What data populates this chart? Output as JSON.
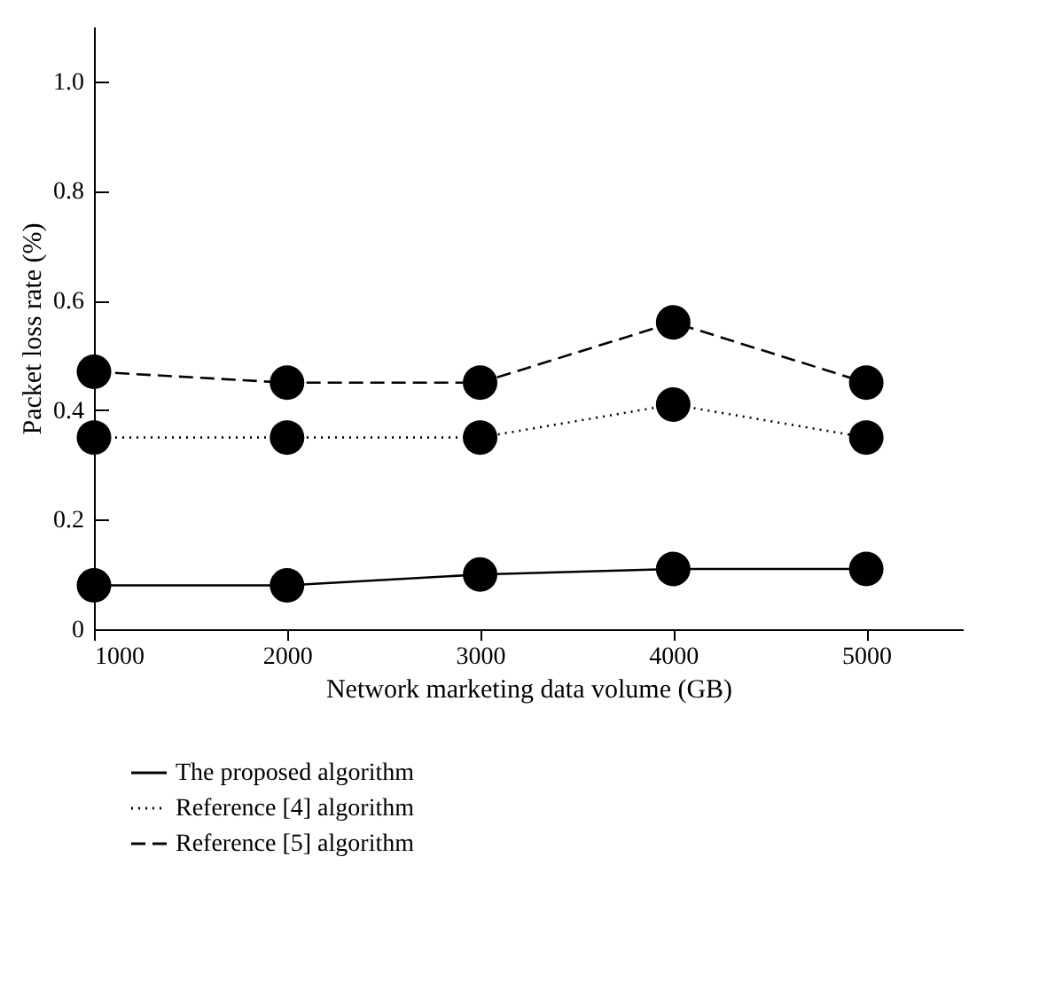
{
  "chart_data": {
    "type": "line",
    "xlabel": "Network marketing data volume (GB)",
    "ylabel": "Packet loss rate (%)",
    "x": [
      1000,
      2000,
      3000,
      4000,
      5000
    ],
    "series": [
      {
        "name": "The proposed algorithm",
        "color": "#000000",
        "line_style": "solid",
        "values": [
          0.08,
          0.08,
          0.1,
          0.11,
          0.11
        ]
      },
      {
        "name": "Reference [4] algorithm",
        "color": "#000000",
        "line_style": "dotted",
        "values": [
          0.35,
          0.35,
          0.35,
          0.41,
          0.35
        ]
      },
      {
        "name": "Reference [5] algorithm",
        "color": "#000000",
        "line_style": "dashed",
        "values": [
          0.47,
          0.45,
          0.45,
          0.56,
          0.45
        ]
      }
    ],
    "xlim": [
      1000,
      5500
    ],
    "xticks": [
      1000,
      2000,
      3000,
      4000,
      5000
    ],
    "ylim": [
      0,
      1.1
    ],
    "yticks": [
      0,
      0.2,
      0.4,
      0.6,
      0.8,
      {
        "value": 1,
        "label": "1.0"
      }
    ],
    "grid": false,
    "legend": "bottom left",
    "marker": "circle"
  }
}
